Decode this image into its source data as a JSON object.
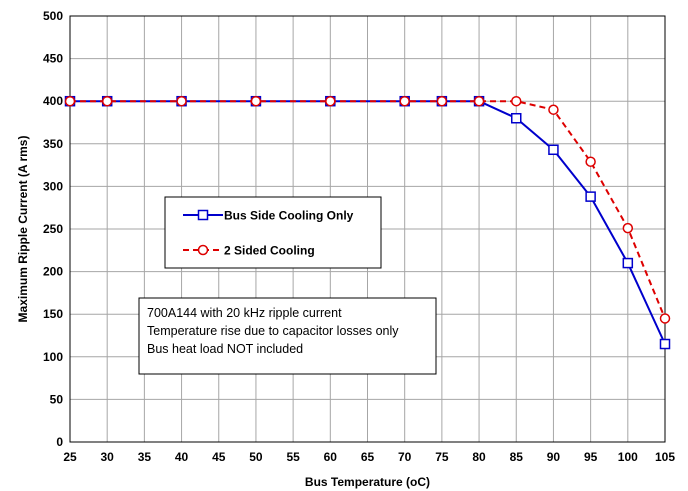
{
  "chart_data": {
    "type": "line",
    "title": "",
    "xlabel": "Bus Temperature (oC)",
    "ylabel": "Maximum Ripple Current (A rms)",
    "x_categories": [
      "25",
      "30",
      "35",
      "40",
      "45",
      "50",
      "55",
      "60",
      "65",
      "70",
      "75",
      "80",
      "85",
      "90",
      "95",
      "100",
      "105"
    ],
    "ylim": [
      0,
      500
    ],
    "yticks": [
      "0",
      "50",
      "100",
      "150",
      "200",
      "250",
      "300",
      "350",
      "400",
      "450",
      "500"
    ],
    "grid": true,
    "legend_position": "center-left",
    "series": [
      {
        "name": "Bus Side Cooling Only",
        "color": "#0000cc",
        "line_style": "solid",
        "marker": "square",
        "points": [
          {
            "x": "25",
            "y": 400
          },
          {
            "x": "30",
            "y": 400
          },
          {
            "x": "40",
            "y": 400
          },
          {
            "x": "50",
            "y": 400
          },
          {
            "x": "60",
            "y": 400
          },
          {
            "x": "70",
            "y": 400
          },
          {
            "x": "75",
            "y": 400
          },
          {
            "x": "80",
            "y": 400
          },
          {
            "x": "85",
            "y": 380
          },
          {
            "x": "90",
            "y": 343
          },
          {
            "x": "95",
            "y": 288
          },
          {
            "x": "100",
            "y": 210
          },
          {
            "x": "105",
            "y": 115
          }
        ]
      },
      {
        "name": "2 Sided Cooling",
        "color": "#dd0000",
        "line_style": "dashed",
        "marker": "circle",
        "points": [
          {
            "x": "25",
            "y": 400
          },
          {
            "x": "30",
            "y": 400
          },
          {
            "x": "40",
            "y": 400
          },
          {
            "x": "50",
            "y": 400
          },
          {
            "x": "60",
            "y": 400
          },
          {
            "x": "70",
            "y": 400
          },
          {
            "x": "75",
            "y": 400
          },
          {
            "x": "80",
            "y": 400
          },
          {
            "x": "85",
            "y": 400
          },
          {
            "x": "90",
            "y": 390
          },
          {
            "x": "95",
            "y": 329
          },
          {
            "x": "100",
            "y": 251
          },
          {
            "x": "105",
            "y": 145
          }
        ]
      }
    ],
    "annotation": [
      "700A144 with 20 kHz ripple current",
      "Temperature rise due to capacitor losses only",
      "Bus heat load NOT included"
    ]
  }
}
